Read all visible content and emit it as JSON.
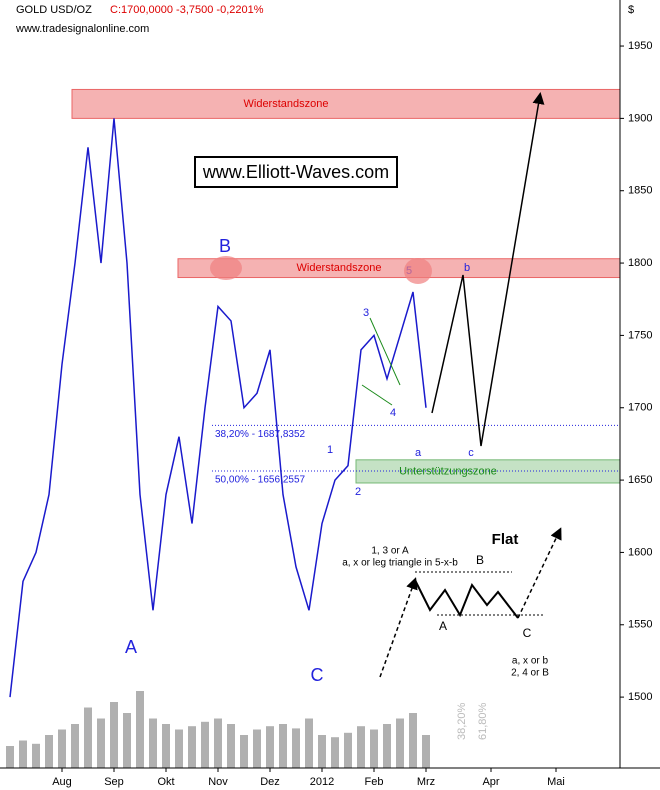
{
  "chart_data": {
    "type": "line",
    "symbol": "GOLD USD/OZ",
    "quote": "C:1700,0000 -3,7500 -0,2201%",
    "source": "www.tradesignalonline.com",
    "currency": "$",
    "watermark": "www.Elliott-Waves.com",
    "categories": [
      null,
      null,
      null,
      null,
      "Aug",
      null,
      null,
      null,
      "Sep",
      null,
      null,
      null,
      "Okt",
      null,
      null,
      null,
      "Nov",
      null,
      null,
      null,
      "Dez",
      null,
      null,
      null,
      "2012",
      null,
      null,
      null,
      "Feb",
      null,
      null,
      null,
      "Mrz",
      null,
      null,
      null,
      null,
      "Apr",
      null,
      null,
      null,
      null,
      "Mai"
    ],
    "series": [
      {
        "name": "GOLD USD/OZ",
        "color": "#1a1acc",
        "values": [
          1500,
          1580,
          1600,
          1640,
          1730,
          1800,
          1880,
          1800,
          1900,
          1800,
          1640,
          1560,
          1640,
          1680,
          1620,
          1700,
          1770,
          1760,
          1700,
          1710,
          1740,
          1640,
          1590,
          1560,
          1620,
          1650,
          1660,
          1740,
          1750,
          1720,
          1750,
          1780,
          1700,
          null,
          null,
          null,
          null,
          null,
          null,
          null,
          null,
          null,
          null
        ]
      },
      {
        "name": "Volume",
        "color": "#b0b0b0",
        "values": [
          20,
          25,
          22,
          30,
          35,
          40,
          55,
          45,
          60,
          50,
          70,
          45,
          40,
          35,
          38,
          42,
          45,
          40,
          30,
          35,
          38,
          40,
          36,
          45,
          30,
          28,
          32,
          38,
          35,
          40,
          45,
          50,
          30,
          null,
          null,
          null,
          null,
          null,
          null,
          null,
          null,
          null,
          null
        ]
      }
    ],
    "ylim": [
      1451,
      1968
    ],
    "yticks": [
      1500,
      1550,
      1600,
      1650,
      1700,
      1750,
      1800,
      1850,
      1900,
      1950
    ],
    "zones": [
      {
        "label": "Widerstandszone",
        "range": [
          1900,
          1920
        ],
        "color": "#f08080"
      },
      {
        "label": "Widerstandszone",
        "range": [
          1790,
          1803
        ],
        "color": "#f08080"
      },
      {
        "label": "Unterstützungszone",
        "range": [
          1648,
          1664
        ],
        "color": "#9fd09f"
      }
    ],
    "fib_levels": [
      {
        "label": "38,20% - 1687,8352",
        "value": 1687.8352
      },
      {
        "label": "50,00% - 1656,2557",
        "value": 1656.2557
      }
    ],
    "wave_labels": [
      "A",
      "B",
      "C",
      "1",
      "2",
      "3",
      "4",
      "5",
      "a",
      "b",
      "c"
    ],
    "pattern": {
      "title": "Flat",
      "note1": "1, 3 or A",
      "note2": "a, x or leg triangle in 5-x-b",
      "labelA": "A",
      "labelB": "B",
      "labelC": "C",
      "note3": "a, x or b",
      "note4": "2, 4 or B"
    },
    "projection_labels": [
      "38,20%",
      "61,80%"
    ]
  }
}
